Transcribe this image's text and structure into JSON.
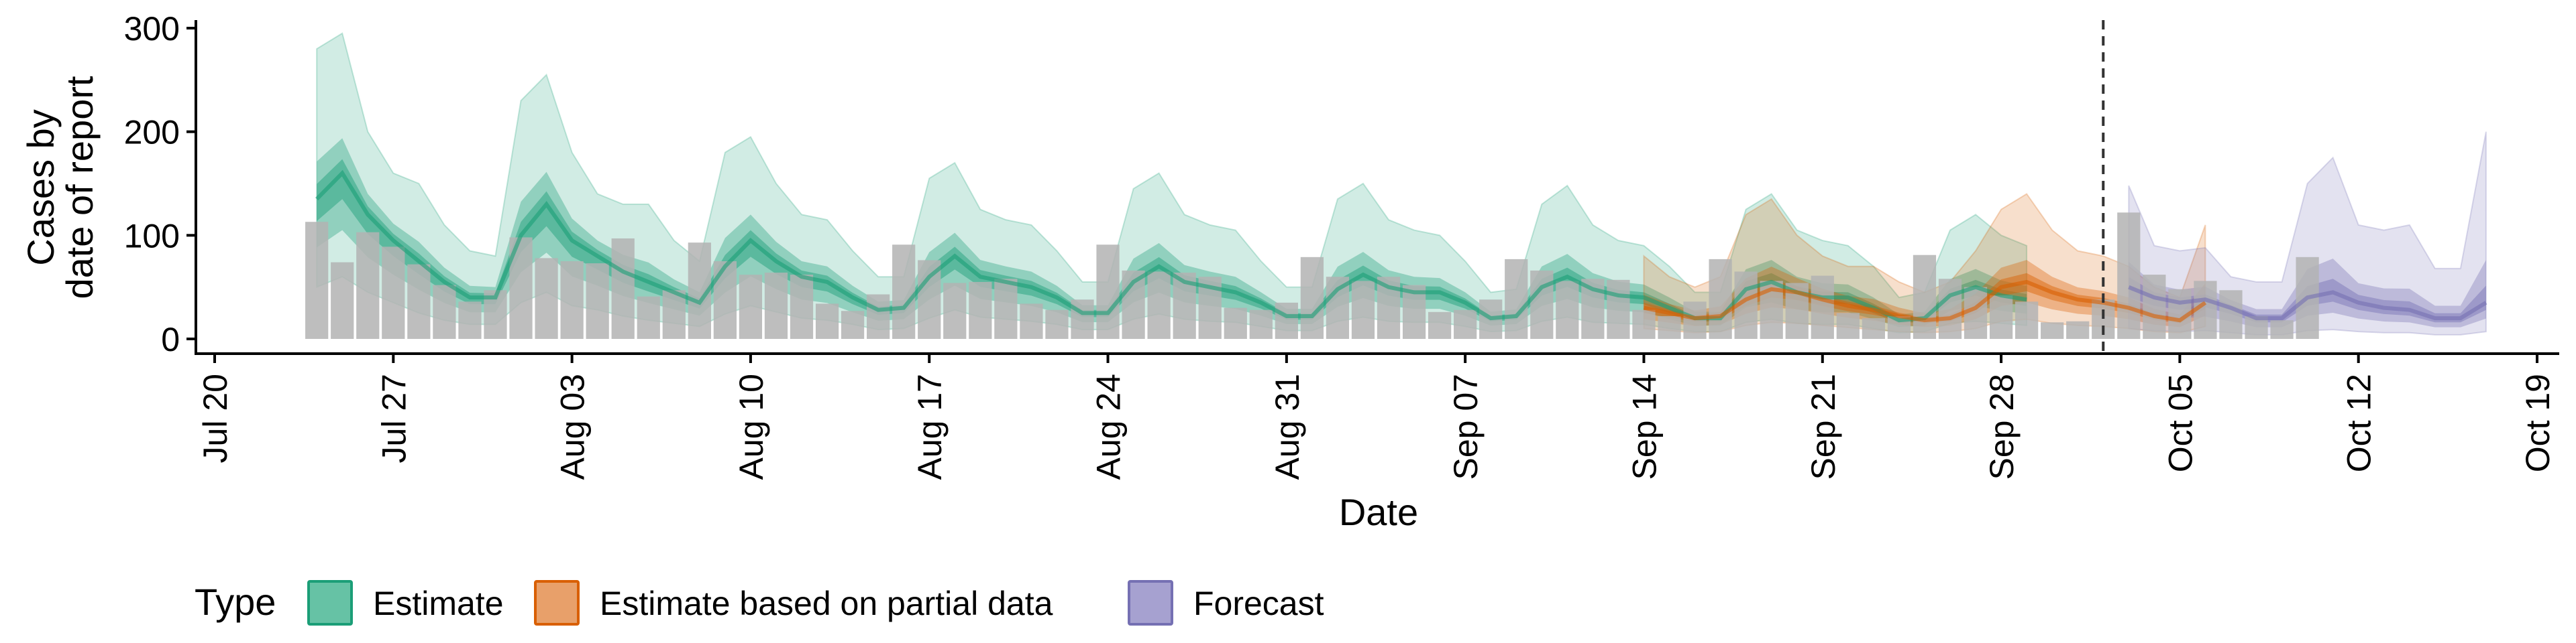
{
  "chart_data": {
    "type": "bar",
    "xlabel": "Date",
    "ylabel_lines": [
      "Cases by",
      "date of report"
    ],
    "ylim": [
      0,
      300
    ],
    "yticks": [
      0,
      100,
      200,
      300
    ],
    "xlim": [
      "2020-07-20",
      "2020-10-19"
    ],
    "xticks": [
      {
        "date": "2020-07-20",
        "label": "Jul 20"
      },
      {
        "date": "2020-07-27",
        "label": "Jul 27"
      },
      {
        "date": "2020-08-03",
        "label": "Aug 03"
      },
      {
        "date": "2020-08-10",
        "label": "Aug 10"
      },
      {
        "date": "2020-08-17",
        "label": "Aug 17"
      },
      {
        "date": "2020-08-24",
        "label": "Aug 24"
      },
      {
        "date": "2020-08-31",
        "label": "Aug 31"
      },
      {
        "date": "2020-09-07",
        "label": "Sep 07"
      },
      {
        "date": "2020-09-14",
        "label": "Sep 14"
      },
      {
        "date": "2020-09-21",
        "label": "Sep 21"
      },
      {
        "date": "2020-09-28",
        "label": "Sep 28"
      },
      {
        "date": "2020-10-05",
        "label": "Oct 05"
      },
      {
        "date": "2020-10-12",
        "label": "Oct 12"
      },
      {
        "date": "2020-10-19",
        "label": "Oct 19"
      }
    ],
    "vline_date": "2020-10-02",
    "grid": false,
    "legend": {
      "title": "Type",
      "position": "bottom",
      "items": [
        {
          "label": "Estimate",
          "fill": "#66c2a5",
          "stroke": "#1b9e77"
        },
        {
          "label": "Estimate based on partial data",
          "fill": "#e8a06a",
          "stroke": "#d95f02"
        },
        {
          "label": "Forecast",
          "fill": "#a6a1d0",
          "stroke": "#7570b3"
        }
      ]
    },
    "colors": {
      "bars": "#b3b3b3",
      "Estimate": "#1b9e77",
      "Estimate based on partial data": "#d95f02",
      "Forecast": "#7570b3"
    },
    "reported_cases": {
      "start_date": "2020-07-24",
      "values": [
        113,
        74,
        103,
        89,
        72,
        52,
        36,
        47,
        98,
        78,
        75,
        73,
        97,
        41,
        47,
        93,
        75,
        62,
        64,
        62,
        34,
        27,
        43,
        91,
        76,
        54,
        55,
        58,
        34,
        28,
        38,
        91,
        66,
        65,
        64,
        60,
        30,
        28,
        35,
        79,
        60,
        56,
        60,
        52,
        26,
        28,
        38,
        77,
        66,
        56,
        58,
        57,
        28,
        22,
        36,
        77,
        65,
        56,
        54,
        61,
        25,
        20,
        22,
        81,
        58,
        50,
        42,
        36,
        16,
        17,
        38,
        122,
        62,
        48,
        56,
        47,
        22,
        18,
        79
      ]
    },
    "estimate_series": [
      {
        "name": "Estimate",
        "start_date": "2020-07-24",
        "median": [
          135,
          160,
          120,
          95,
          75,
          55,
          40,
          40,
          100,
          130,
          95,
          80,
          65,
          55,
          45,
          35,
          70,
          95,
          75,
          60,
          55,
          40,
          28,
          30,
          60,
          80,
          60,
          55,
          50,
          40,
          25,
          25,
          55,
          70,
          55,
          50,
          45,
          35,
          22,
          22,
          48,
          62,
          50,
          45,
          45,
          35,
          20,
          22,
          50,
          60,
          48,
          42,
          40,
          30,
          20,
          20,
          48,
          55,
          45,
          40,
          40,
          30,
          18,
          20,
          42,
          50,
          42,
          38
        ],
        "ci90_lower": [
          50,
          60,
          45,
          35,
          25,
          18,
          14,
          14,
          35,
          45,
          32,
          28,
          22,
          18,
          15,
          12,
          24,
          32,
          26,
          20,
          18,
          14,
          9,
          10,
          20,
          28,
          21,
          19,
          17,
          14,
          9,
          9,
          19,
          24,
          19,
          17,
          16,
          12,
          8,
          8,
          17,
          21,
          17,
          16,
          16,
          12,
          7,
          8,
          17,
          21,
          16,
          15,
          14,
          10,
          7,
          7,
          16,
          19,
          15,
          14,
          14,
          10,
          6,
          7,
          15,
          17,
          15,
          13
        ],
        "ci90_upper": [
          280,
          295,
          200,
          160,
          150,
          110,
          85,
          80,
          230,
          255,
          180,
          140,
          130,
          130,
          95,
          75,
          180,
          195,
          150,
          120,
          115,
          85,
          60,
          60,
          155,
          170,
          125,
          115,
          110,
          85,
          55,
          55,
          145,
          160,
          120,
          110,
          105,
          75,
          50,
          50,
          135,
          150,
          115,
          105,
          100,
          75,
          45,
          48,
          130,
          148,
          110,
          95,
          90,
          70,
          45,
          45,
          125,
          140,
          105,
          95,
          90,
          70,
          40,
          45,
          105,
          120,
          100,
          90
        ]
      },
      {
        "name": "Estimate based on partial data",
        "start_date": "2020-09-30",
        "median": [],
        "ci90_lower": [],
        "ci90_upper": []
      }
    ],
    "partial_series": {
      "name": "Estimate based on partial data",
      "start_date": "2020-09-14",
      "median": [
        30,
        25,
        20,
        22,
        38,
        48,
        45,
        38,
        32,
        28,
        22,
        18,
        20,
        30,
        50,
        55,
        45,
        38,
        35,
        30,
        22,
        18,
        35
      ],
      "ci90_lower": [
        10,
        8,
        6,
        7,
        13,
        16,
        15,
        13,
        11,
        9,
        7,
        6,
        7,
        10,
        17,
        19,
        15,
        13,
        12,
        10,
        7,
        6,
        12
      ],
      "ci90_upper": [
        80,
        60,
        50,
        60,
        120,
        135,
        100,
        80,
        70,
        70,
        55,
        45,
        55,
        85,
        125,
        140,
        105,
        85,
        80,
        70,
        50,
        40,
        110
      ]
    },
    "forecast_series": {
      "name": "Forecast",
      "start_date": "2020-10-03",
      "median": [
        50,
        40,
        35,
        38,
        30,
        20,
        20,
        40,
        45,
        35,
        30,
        28,
        20,
        20,
        35
      ],
      "ci90_lower": [
        10,
        8,
        7,
        8,
        6,
        4,
        4,
        8,
        9,
        7,
        6,
        6,
        4,
        4,
        7
      ],
      "ci90_upper": [
        148,
        90,
        85,
        88,
        60,
        55,
        55,
        150,
        175,
        110,
        105,
        110,
        68,
        68,
        200
      ]
    }
  }
}
